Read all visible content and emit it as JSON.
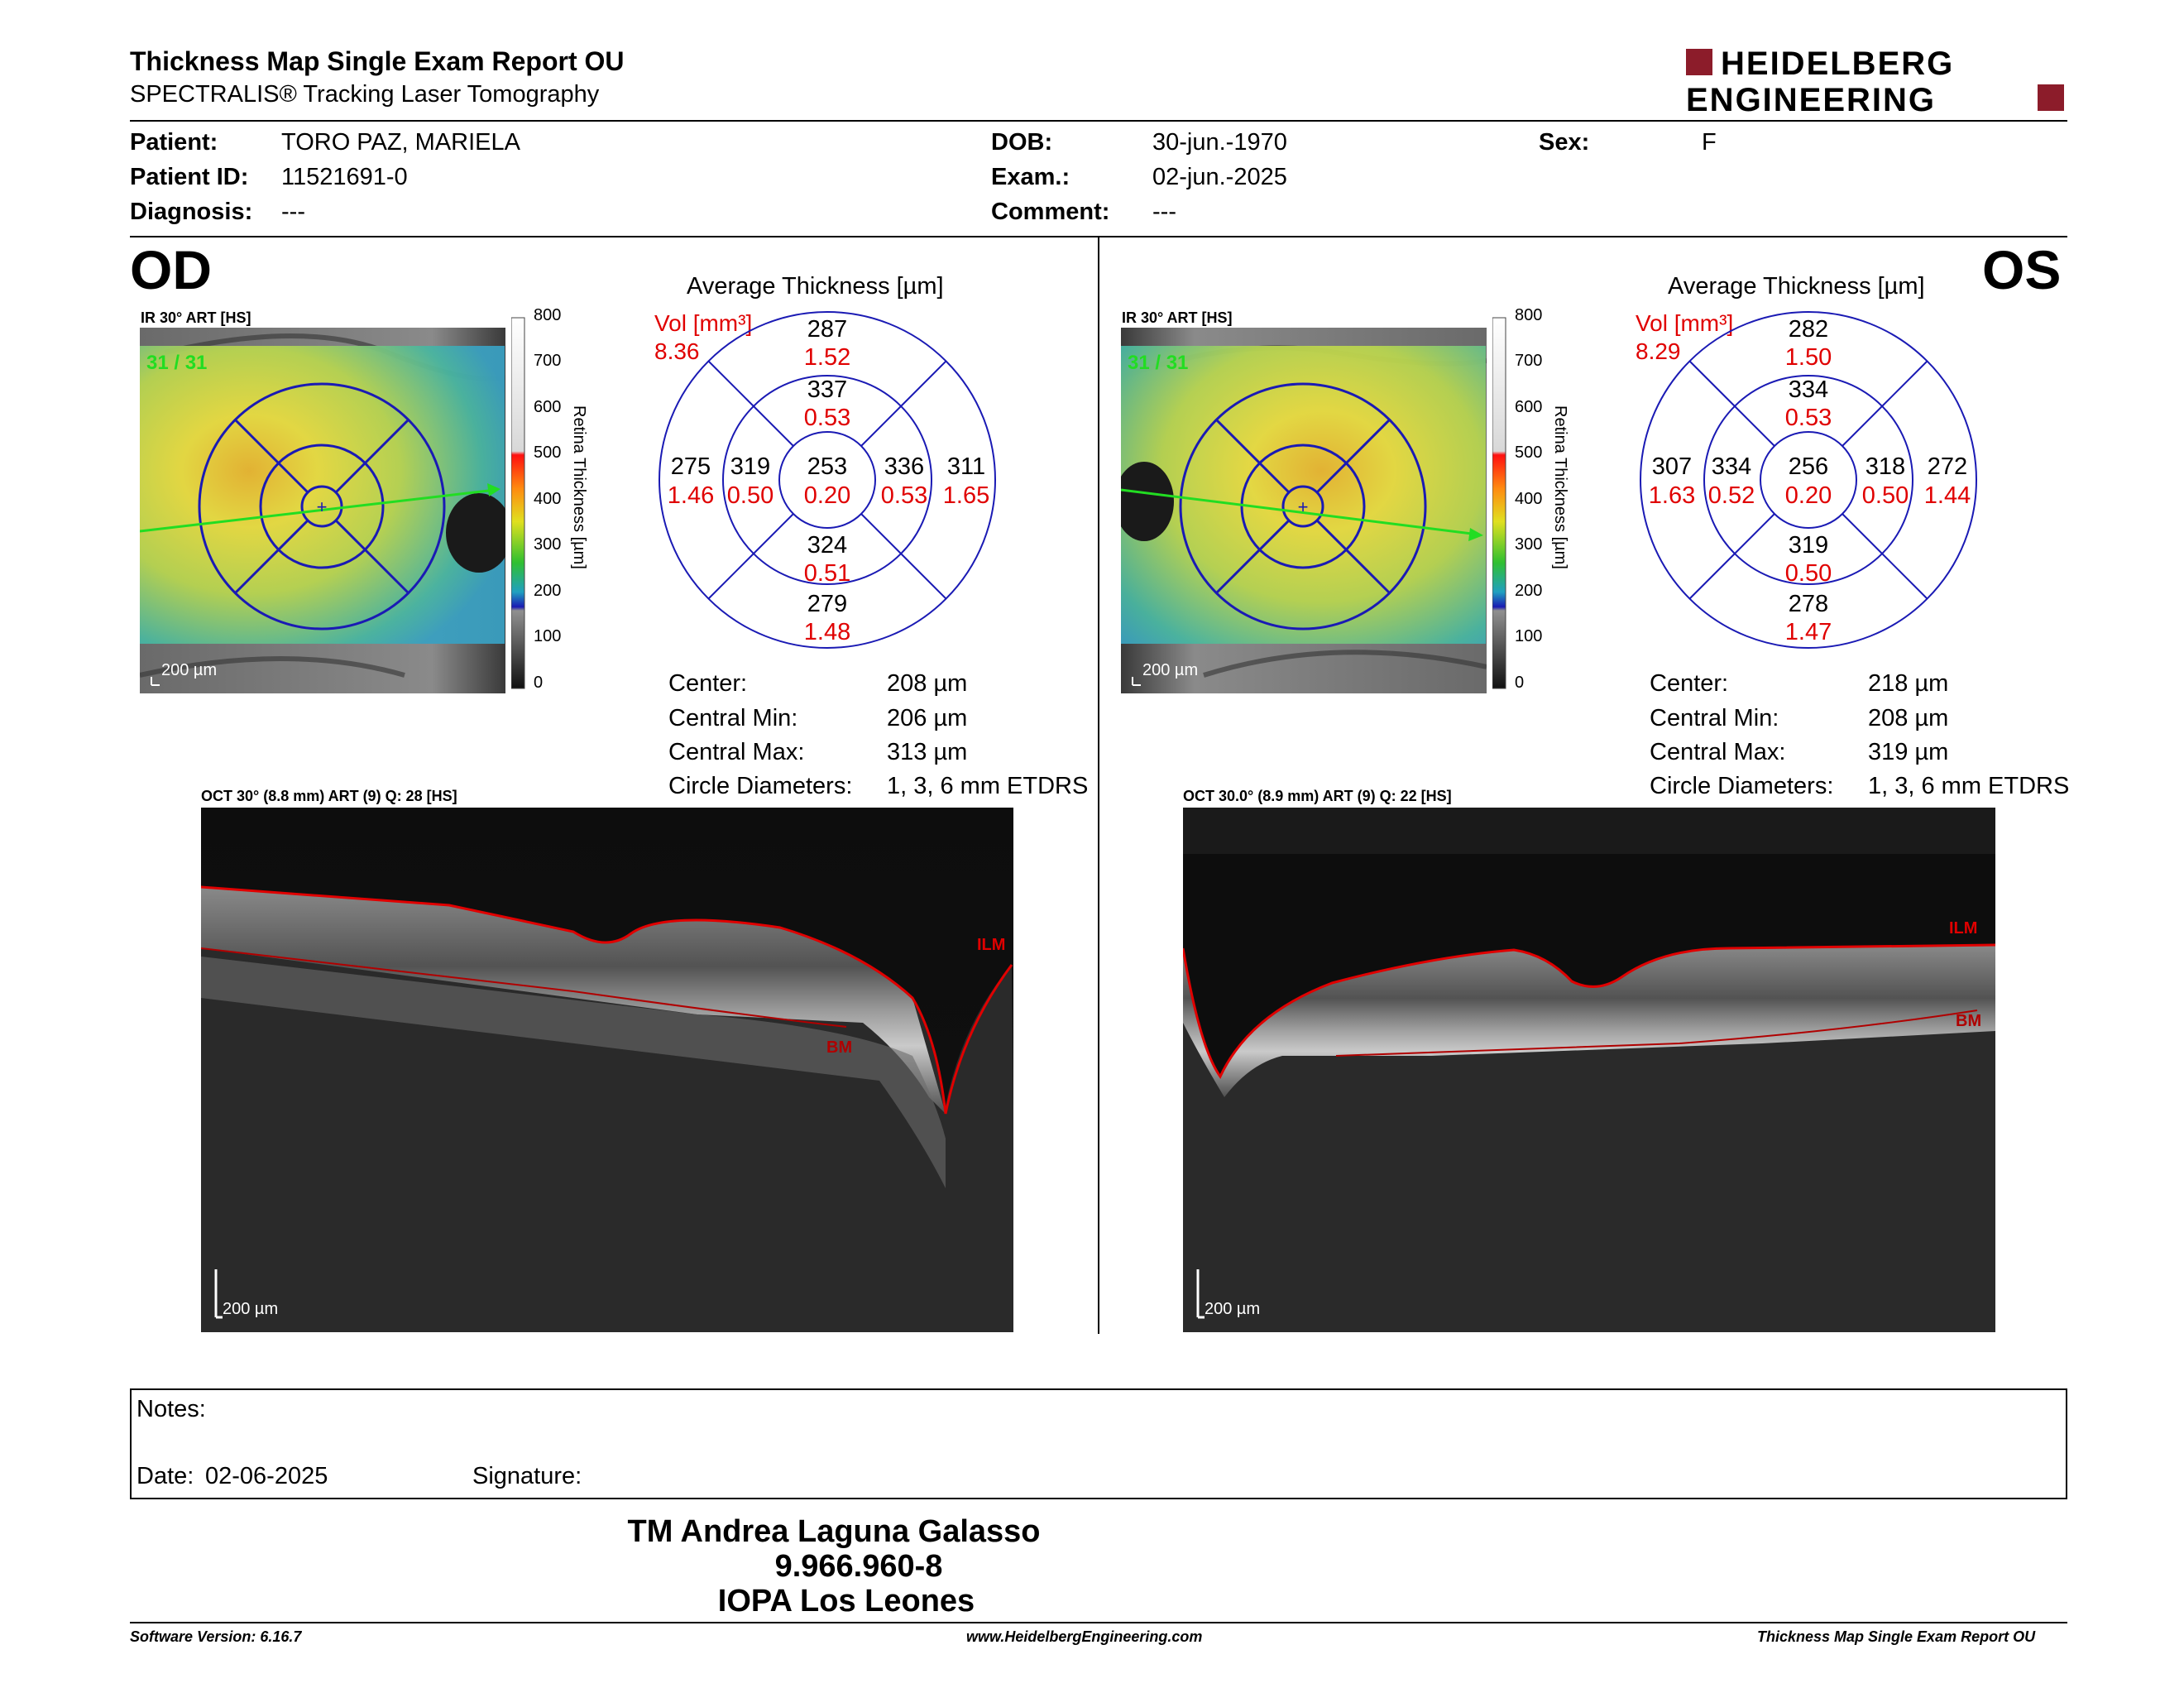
{
  "header": {
    "title": "Thickness Map Single Exam Report OU",
    "subtitle": "SPECTRALIS® Tracking Laser Tomography",
    "logo_line1": "HEIDELBERG",
    "logo_line2": "ENGINEERING",
    "brand_color": "#8c1c2a"
  },
  "patient": {
    "patient_label": "Patient:",
    "patient_value": "TORO PAZ, MARIELA",
    "id_label": "Patient ID:",
    "id_value": "11521691-0",
    "diagnosis_label": "Diagnosis:",
    "diagnosis_value": "---",
    "dob_label": "DOB:",
    "dob_value": "30-jun.-1970",
    "exam_label": "Exam.:",
    "exam_value": "02-jun.-2025",
    "comment_label": "Comment:",
    "comment_value": "---",
    "sex_label": "Sex:",
    "sex_value": "F"
  },
  "od": {
    "eye_label": "OD",
    "ir_caption": "IR 30° ART [HS]",
    "ir_counter": "31 / 31",
    "scale_label": "200 µm",
    "avg_title": "Average Thickness [µm]",
    "vol_label": "Vol [mm³]",
    "vol_value": "8.36",
    "sectors": {
      "sup_outer_t": "287",
      "sup_outer_v": "1.52",
      "sup_inner_t": "337",
      "sup_inner_v": "0.53",
      "temp_outer_t": "275",
      "temp_outer_v": "1.46",
      "temp_inner_t": "319",
      "temp_inner_v": "0.50",
      "center_t": "253",
      "center_v": "0.20",
      "nas_inner_t": "336",
      "nas_inner_v": "0.53",
      "nas_outer_t": "311",
      "nas_outer_v": "1.65",
      "inf_inner_t": "324",
      "inf_inner_v": "0.51",
      "inf_outer_t": "279",
      "inf_outer_v": "1.48"
    },
    "stats": {
      "center_label": "Center:",
      "center_value": "208 µm",
      "min_label": "Central Min:",
      "min_value": "206 µm",
      "max_label": "Central Max:",
      "max_value": "313 µm",
      "diam_label": "Circle Diameters:",
      "diam_value": "1, 3, 6 mm ETDRS"
    },
    "oct_caption": "OCT 30° (8.8 mm) ART (9) Q: 28 [HS]",
    "oct_ilm": "ILM",
    "oct_bm": "BM",
    "oct_scale": "200 µm"
  },
  "os": {
    "eye_label": "OS",
    "ir_caption": "IR 30° ART [HS]",
    "ir_counter": "31 / 31",
    "scale_label": "200 µm",
    "avg_title": "Average Thickness [µm]",
    "vol_label": "Vol [mm³]",
    "vol_value": "8.29",
    "sectors": {
      "sup_outer_t": "282",
      "sup_outer_v": "1.50",
      "sup_inner_t": "334",
      "sup_inner_v": "0.53",
      "temp_outer_t": "307",
      "temp_outer_v": "1.63",
      "temp_inner_t": "334",
      "temp_inner_v": "0.52",
      "center_t": "256",
      "center_v": "0.20",
      "nas_inner_t": "318",
      "nas_inner_v": "0.50",
      "nas_outer_t": "272",
      "nas_outer_v": "1.44",
      "inf_inner_t": "319",
      "inf_inner_v": "0.50",
      "inf_outer_t": "278",
      "inf_outer_v": "1.47"
    },
    "stats": {
      "center_label": "Center:",
      "center_value": "218 µm",
      "min_label": "Central Min:",
      "min_value": "208 µm",
      "max_label": "Central Max:",
      "max_value": "319 µm",
      "diam_label": "Circle Diameters:",
      "diam_value": "1, 3, 6 mm ETDRS"
    },
    "oct_caption": "OCT 30.0° (8.9 mm) ART (9) Q: 22 [HS]",
    "oct_ilm": "ILM",
    "oct_bm": "BM",
    "oct_scale": "200 µm"
  },
  "colorbar": {
    "ticks": [
      "800",
      "700",
      "600",
      "500",
      "400",
      "300",
      "200",
      "100",
      "0"
    ],
    "title": "Retina Thickness [µm]"
  },
  "notes": {
    "notes_label": "Notes:",
    "date_label": "Date:",
    "date_value": "02-06-2025",
    "signature_label": "Signature:"
  },
  "signature_block": {
    "name": "TM Andrea Laguna Galasso",
    "id": "9.966.960-8",
    "clinic": "IOPA Los Leones"
  },
  "footer": {
    "software": "Software Version: 6.16.7",
    "website": "www.HeidelbergEngineering.com",
    "report": "Thickness Map Single Exam Report OU"
  },
  "colors": {
    "thickness_value": "#000000",
    "volume_value": "#e00000",
    "grid": "#1a1ab4",
    "scan_line": "#22dd22",
    "ilm_line": "#e00000"
  }
}
